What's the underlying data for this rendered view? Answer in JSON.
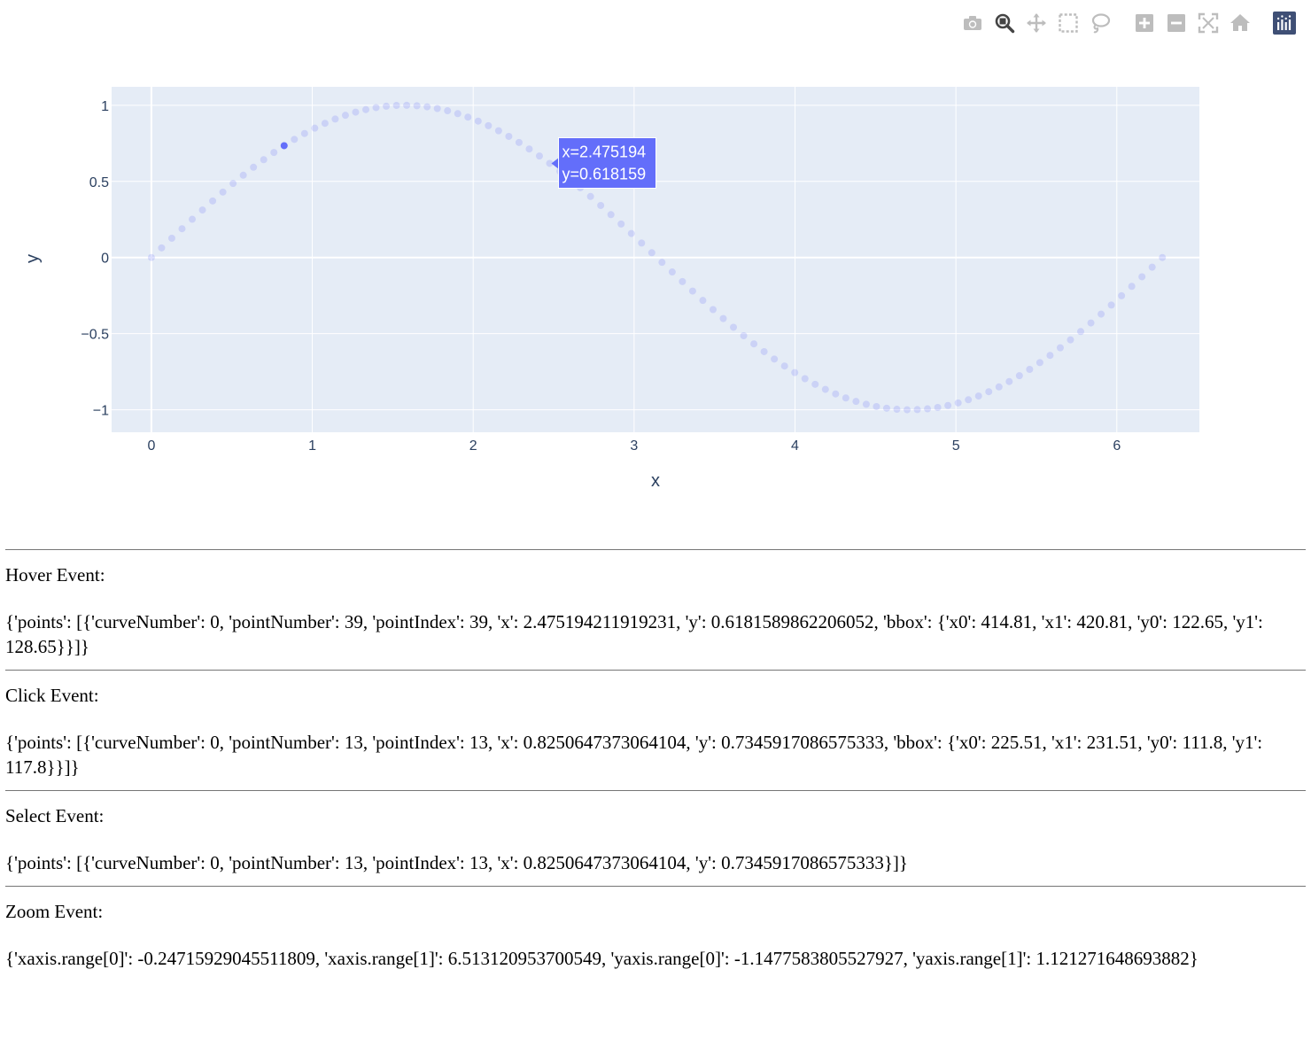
{
  "modebar": {
    "buttons": [
      {
        "name": "download-plot-button",
        "icon": "camera-icon",
        "title": "Download plot as a png"
      },
      {
        "name": "zoom-button",
        "icon": "zoom-icon",
        "title": "Zoom",
        "active": true
      },
      {
        "name": "pan-button",
        "icon": "pan-icon",
        "title": "Pan"
      },
      {
        "name": "box-select-button",
        "icon": "box-select-icon",
        "title": "Box Select"
      },
      {
        "name": "lasso-select-button",
        "icon": "lasso-icon",
        "title": "Lasso Select"
      },
      {
        "name": "zoom-in-button",
        "icon": "zoom-in-icon",
        "title": "Zoom in"
      },
      {
        "name": "zoom-out-button",
        "icon": "zoom-out-icon",
        "title": "Zoom out"
      },
      {
        "name": "autoscale-button",
        "icon": "autoscale-icon",
        "title": "Autoscale"
      },
      {
        "name": "reset-axes-button",
        "icon": "home-icon",
        "title": "Reset axes"
      },
      {
        "name": "plotly-logo",
        "icon": "plotly-logo-icon",
        "title": "Produced with Plotly"
      }
    ]
  },
  "chart_data": {
    "type": "scatter",
    "title": "",
    "xlabel": "x",
    "ylabel": "y",
    "xlim": [
      -0.2471592904551181,
      6.513120953700549
    ],
    "ylim": [
      -1.1477583805527927,
      1.121271648693882
    ],
    "x_ticks": [
      0,
      1,
      2,
      3,
      4,
      5,
      6
    ],
    "y_ticks": [
      1,
      0.5,
      0,
      -0.5,
      -1
    ],
    "y_tick_labels": [
      "1",
      "0.5",
      "0",
      "−0.5",
      "−1"
    ],
    "grid": true,
    "legend": "none",
    "series": [
      {
        "function": "y = sin(x)",
        "point_count": 100,
        "x_start": 0,
        "x_end": 6.283185307179586,
        "marker_color": "#636efa",
        "unselected_opacity": 0.2,
        "selected_point_indices": [
          13
        ]
      }
    ],
    "hover": {
      "point_index": 39,
      "x_label": "x=2.475194",
      "y_label": "y=0.618159"
    },
    "colors": {
      "plot_background": "#e5ecf6",
      "grid": "#ffffff",
      "tick_text": "#2a3f5f",
      "hover_background": "#636efa"
    }
  },
  "events": [
    {
      "title": "Hover Event:",
      "body": "{'points': [{'curveNumber': 0, 'pointNumber': 39, 'pointIndex': 39, 'x': 2.475194211919231, 'y': 0.6181589862206052, 'bbox': {'x0': 414.81, 'x1': 420.81, 'y0': 122.65, 'y1': 128.65}}]}"
    },
    {
      "title": "Click Event:",
      "body": "{'points': [{'curveNumber': 0, 'pointNumber': 13, 'pointIndex': 13, 'x': 0.8250647373064104, 'y': 0.7345917086575333, 'bbox': {'x0': 225.51, 'x1': 231.51, 'y0': 111.8, 'y1': 117.8}}]}"
    },
    {
      "title": "Select Event:",
      "body": "{'points': [{'curveNumber': 0, 'pointNumber': 13, 'pointIndex': 13, 'x': 0.8250647373064104, 'y': 0.7345917086575333}]}"
    },
    {
      "title": "Zoom Event:",
      "body": "{'xaxis.range[0]': -0.24715929045511809, 'xaxis.range[1]': 6.513120953700549, 'yaxis.range[0]': -1.1477583805527927, 'yaxis.range[1]': 1.121271648693882}"
    }
  ]
}
